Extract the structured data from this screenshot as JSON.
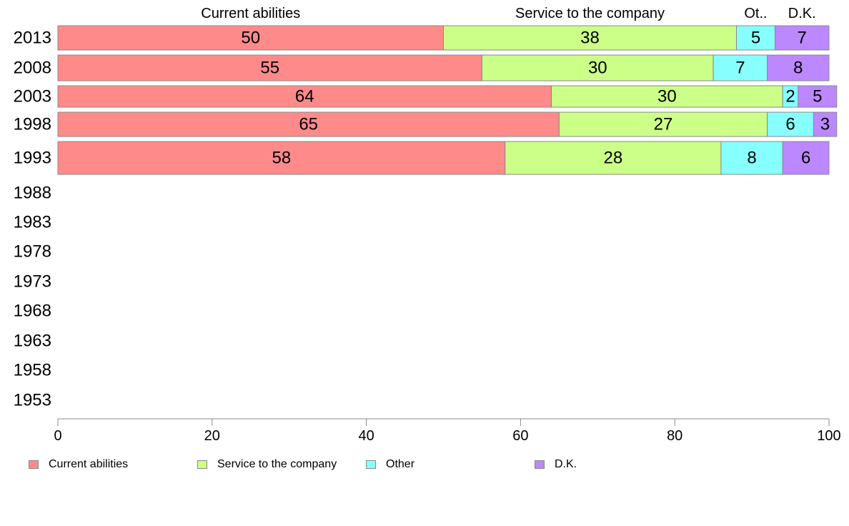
{
  "chart_data": {
    "type": "bar",
    "orientation": "horizontal",
    "stacked": true,
    "categories": [
      "2013",
      "2008",
      "2003",
      "1998",
      "1993",
      "1988",
      "1983",
      "1978",
      "1973",
      "1968",
      "1963",
      "1958",
      "1953"
    ],
    "series": [
      {
        "name": "Current abilities",
        "header": "Current abilities",
        "color": "#ff8a8a",
        "values": [
          50,
          55,
          64,
          65,
          58,
          null,
          null,
          null,
          null,
          null,
          null,
          null,
          null
        ]
      },
      {
        "name": "Service to the company",
        "header": "Service to the company",
        "color": "#ccff88",
        "values": [
          38,
          30,
          30,
          27,
          28,
          null,
          null,
          null,
          null,
          null,
          null,
          null,
          null
        ]
      },
      {
        "name": "Other",
        "header": "Ot..",
        "color": "#88ffff",
        "values": [
          5,
          7,
          2,
          6,
          8,
          null,
          null,
          null,
          null,
          null,
          null,
          null,
          null
        ]
      },
      {
        "name": "D.K.",
        "header": "D.K.",
        "color": "#bb88ff",
        "values": [
          7,
          8,
          5,
          3,
          6,
          null,
          null,
          null,
          null,
          null,
          null,
          null,
          null
        ]
      }
    ],
    "xlim": [
      0,
      100
    ],
    "xticks": [
      0,
      20,
      40,
      60,
      80,
      100
    ],
    "title": "",
    "xlabel": "",
    "ylabel": "",
    "grid": false,
    "legend_position": "bottom"
  }
}
